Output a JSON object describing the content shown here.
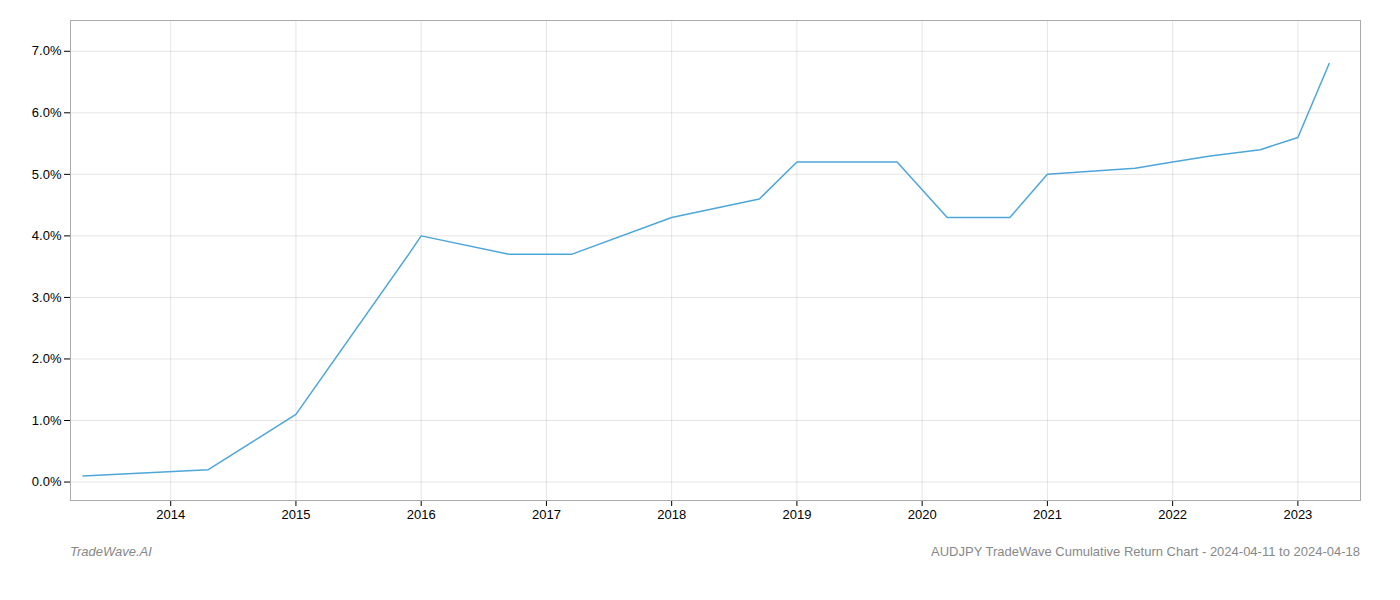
{
  "chart_data": {
    "type": "line",
    "x": [
      2013.3,
      2014.3,
      2015.0,
      2015.9,
      2016.0,
      2016.7,
      2017.2,
      2018.0,
      2018.7,
      2019.0,
      2019.2,
      2019.8,
      2020.2,
      2020.7,
      2021.0,
      2021.7,
      2022.0,
      2022.3,
      2022.7,
      2023.0,
      2023.25
    ],
    "values": [
      0.001,
      0.002,
      0.011,
      0.037,
      0.04,
      0.037,
      0.037,
      0.043,
      0.046,
      0.052,
      0.052,
      0.052,
      0.043,
      0.043,
      0.05,
      0.051,
      0.052,
      0.053,
      0.054,
      0.056,
      0.068
    ],
    "color": "#4da6d9",
    "xlim": [
      2013.2,
      2023.5
    ],
    "ylim": [
      -0.003,
      0.075
    ],
    "xticks": [
      2014,
      2015,
      2016,
      2017,
      2018,
      2019,
      2020,
      2021,
      2022,
      2023
    ],
    "yticks": [
      {
        "value": 0.0,
        "label": "0.0%"
      },
      {
        "value": 0.01,
        "label": "1.0%"
      },
      {
        "value": 0.02,
        "label": "2.0%"
      },
      {
        "value": 0.03,
        "label": "3.0%"
      },
      {
        "value": 0.04,
        "label": "4.0%"
      },
      {
        "value": 0.05,
        "label": "5.0%"
      },
      {
        "value": 0.06,
        "label": "6.0%"
      },
      {
        "value": 0.07,
        "label": "7.0%"
      }
    ],
    "grid": true,
    "annotations": [
      "TradeWave.AI",
      "AUDJPY TradeWave Cumulative Return Chart - 2024-04-11 to 2024-04-18"
    ]
  }
}
